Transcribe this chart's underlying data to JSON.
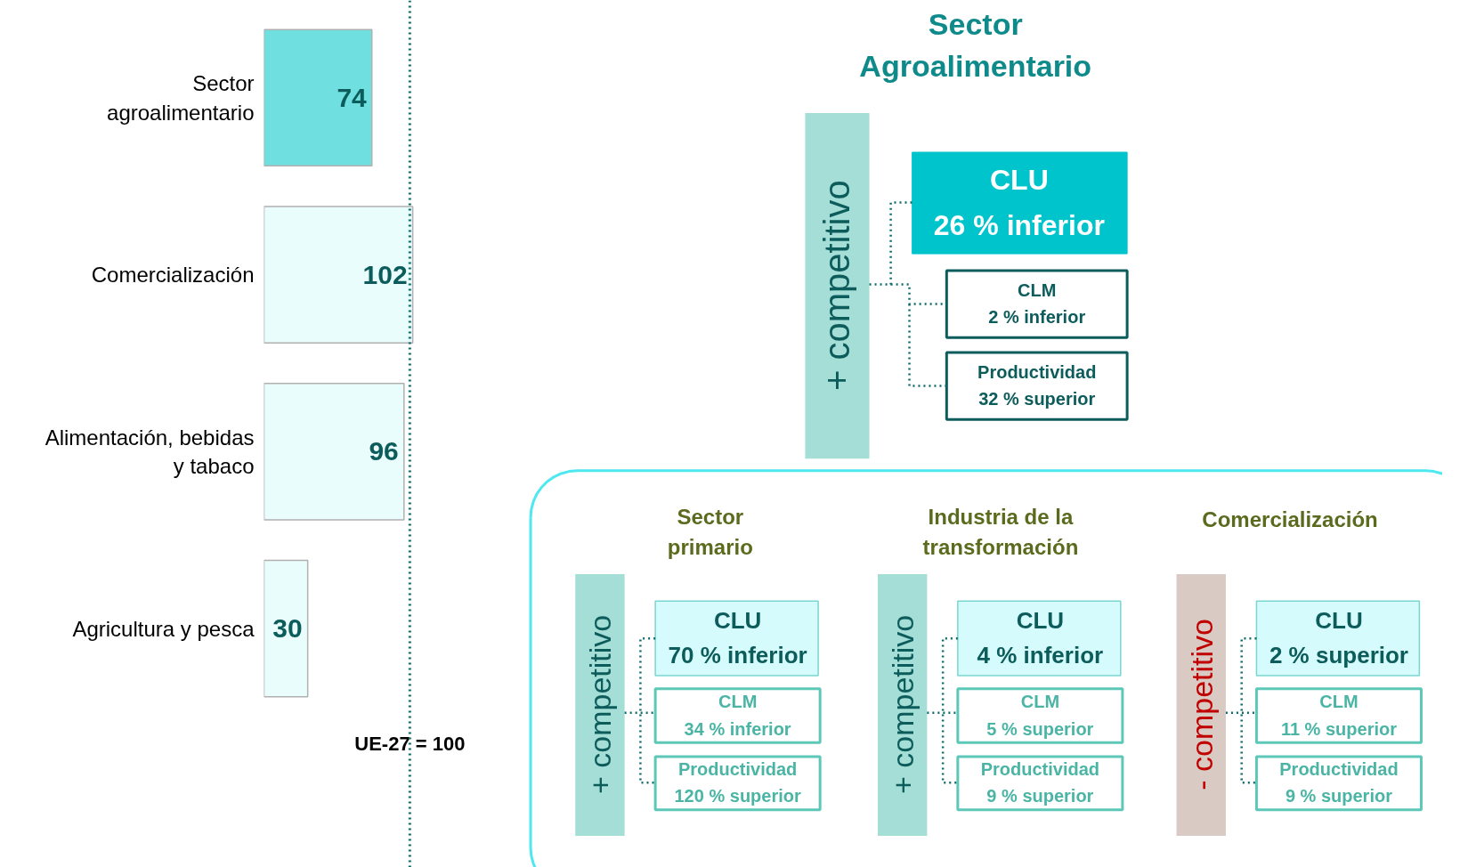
{
  "chart_data": [
    {
      "type": "bar",
      "orientation": "horizontal",
      "categories": [
        "Sector\nagroalimentario",
        "Comercialización",
        "Alimentación, bebidas\ny tabaco",
        "Agricultura y pesca"
      ],
      "values": [
        74,
        102,
        96,
        30
      ],
      "colors": [
        "#70dfe0",
        "#eafdfd",
        "#eafdfd",
        "#eafdfd"
      ],
      "data_labels": true,
      "tick_labels": "y",
      "grid": false,
      "ref_lines": [
        {
          "axis": "x",
          "value": 100,
          "label": "UE-27 = 100",
          "color": "#0d6b6b",
          "line_style": "dotted"
        }
      ]
    },
    {
      "type": "other",
      "title": "Sector\nAgroalimentario",
      "annotations": [
        "+ competitivo",
        "CLU",
        "26 % inferior",
        "CLM",
        "2 % inferior",
        "Productividad",
        "32 % superior",
        "Sector\nprimario",
        "+ competitivo",
        "CLU",
        "70 % inferior",
        "CLM",
        "34 % inferior",
        "Productividad",
        "120 % superior",
        "Industria de la\ntransformación",
        "+ competitivo",
        "CLU",
        "4 % inferior",
        "CLM",
        "5 % superior",
        "Productividad",
        "9 % superior",
        "Comercialización",
        "- competitivo",
        "CLU",
        "2 % superior",
        "CLM",
        "11 % superior",
        "Productividad",
        "9 % superior"
      ]
    }
  ]
}
